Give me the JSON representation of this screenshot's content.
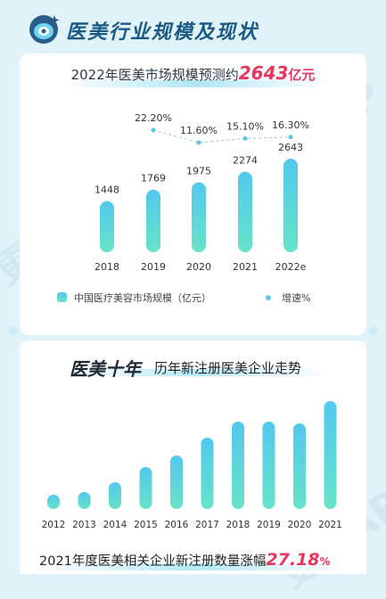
{
  "header": {
    "title": "医美行业规模及现状"
  },
  "section1": {
    "subtitle_prefix": "2022年医美市场规模预测约",
    "subtitle_value": "2643",
    "subtitle_unit": "亿元"
  },
  "section2": {
    "title": "医美十年",
    "subtitle": "历年新注册医美企业走势"
  },
  "footer": {
    "text": "2021年度医美相关企业新注册数量涨幅",
    "value": "27.18",
    "percent_sign": "%"
  },
  "watermark": "更美APP",
  "colors": {
    "bar_top": "#53c8ee",
    "bar_bottom": "#67e3c8",
    "accent": "#e8355c",
    "growth_line": "#9ec3d6",
    "title": "#1b5a86"
  },
  "chart_data": [
    {
      "type": "bar",
      "categories": [
        "2018",
        "2019",
        "2020",
        "2021",
        "2022e"
      ],
      "series": [
        {
          "name": "中国医疗美容市场规模（亿元）",
          "values": [
            1448,
            1769,
            1975,
            2274,
            2643
          ]
        },
        {
          "name": "增速%",
          "type": "line",
          "values": [
            null,
            22.2,
            11.6,
            15.1,
            16.3
          ],
          "labels": [
            "",
            "22.20%",
            "11.60%",
            "15.10%",
            "16.30%"
          ]
        }
      ],
      "data_labels": [
        "1448",
        "1769",
        "1975",
        "2274",
        "2643"
      ],
      "legend": [
        "中国医疗美容市场规模（亿元）",
        "增速%"
      ],
      "legend_position": "bottom",
      "title": "",
      "xlabel": "",
      "ylabel": "",
      "grid": false
    },
    {
      "type": "bar",
      "categories": [
        "2012",
        "2013",
        "2014",
        "2015",
        "2016",
        "2017",
        "2018",
        "2019",
        "2020",
        "2021"
      ],
      "series": [
        {
          "name": "",
          "values": [
            16,
            19,
            30,
            47,
            60,
            80,
            98,
            98,
            96,
            121
          ]
        }
      ],
      "value_axis_printed": false,
      "title": "",
      "xlabel": "",
      "ylabel": "",
      "grid": false
    }
  ]
}
